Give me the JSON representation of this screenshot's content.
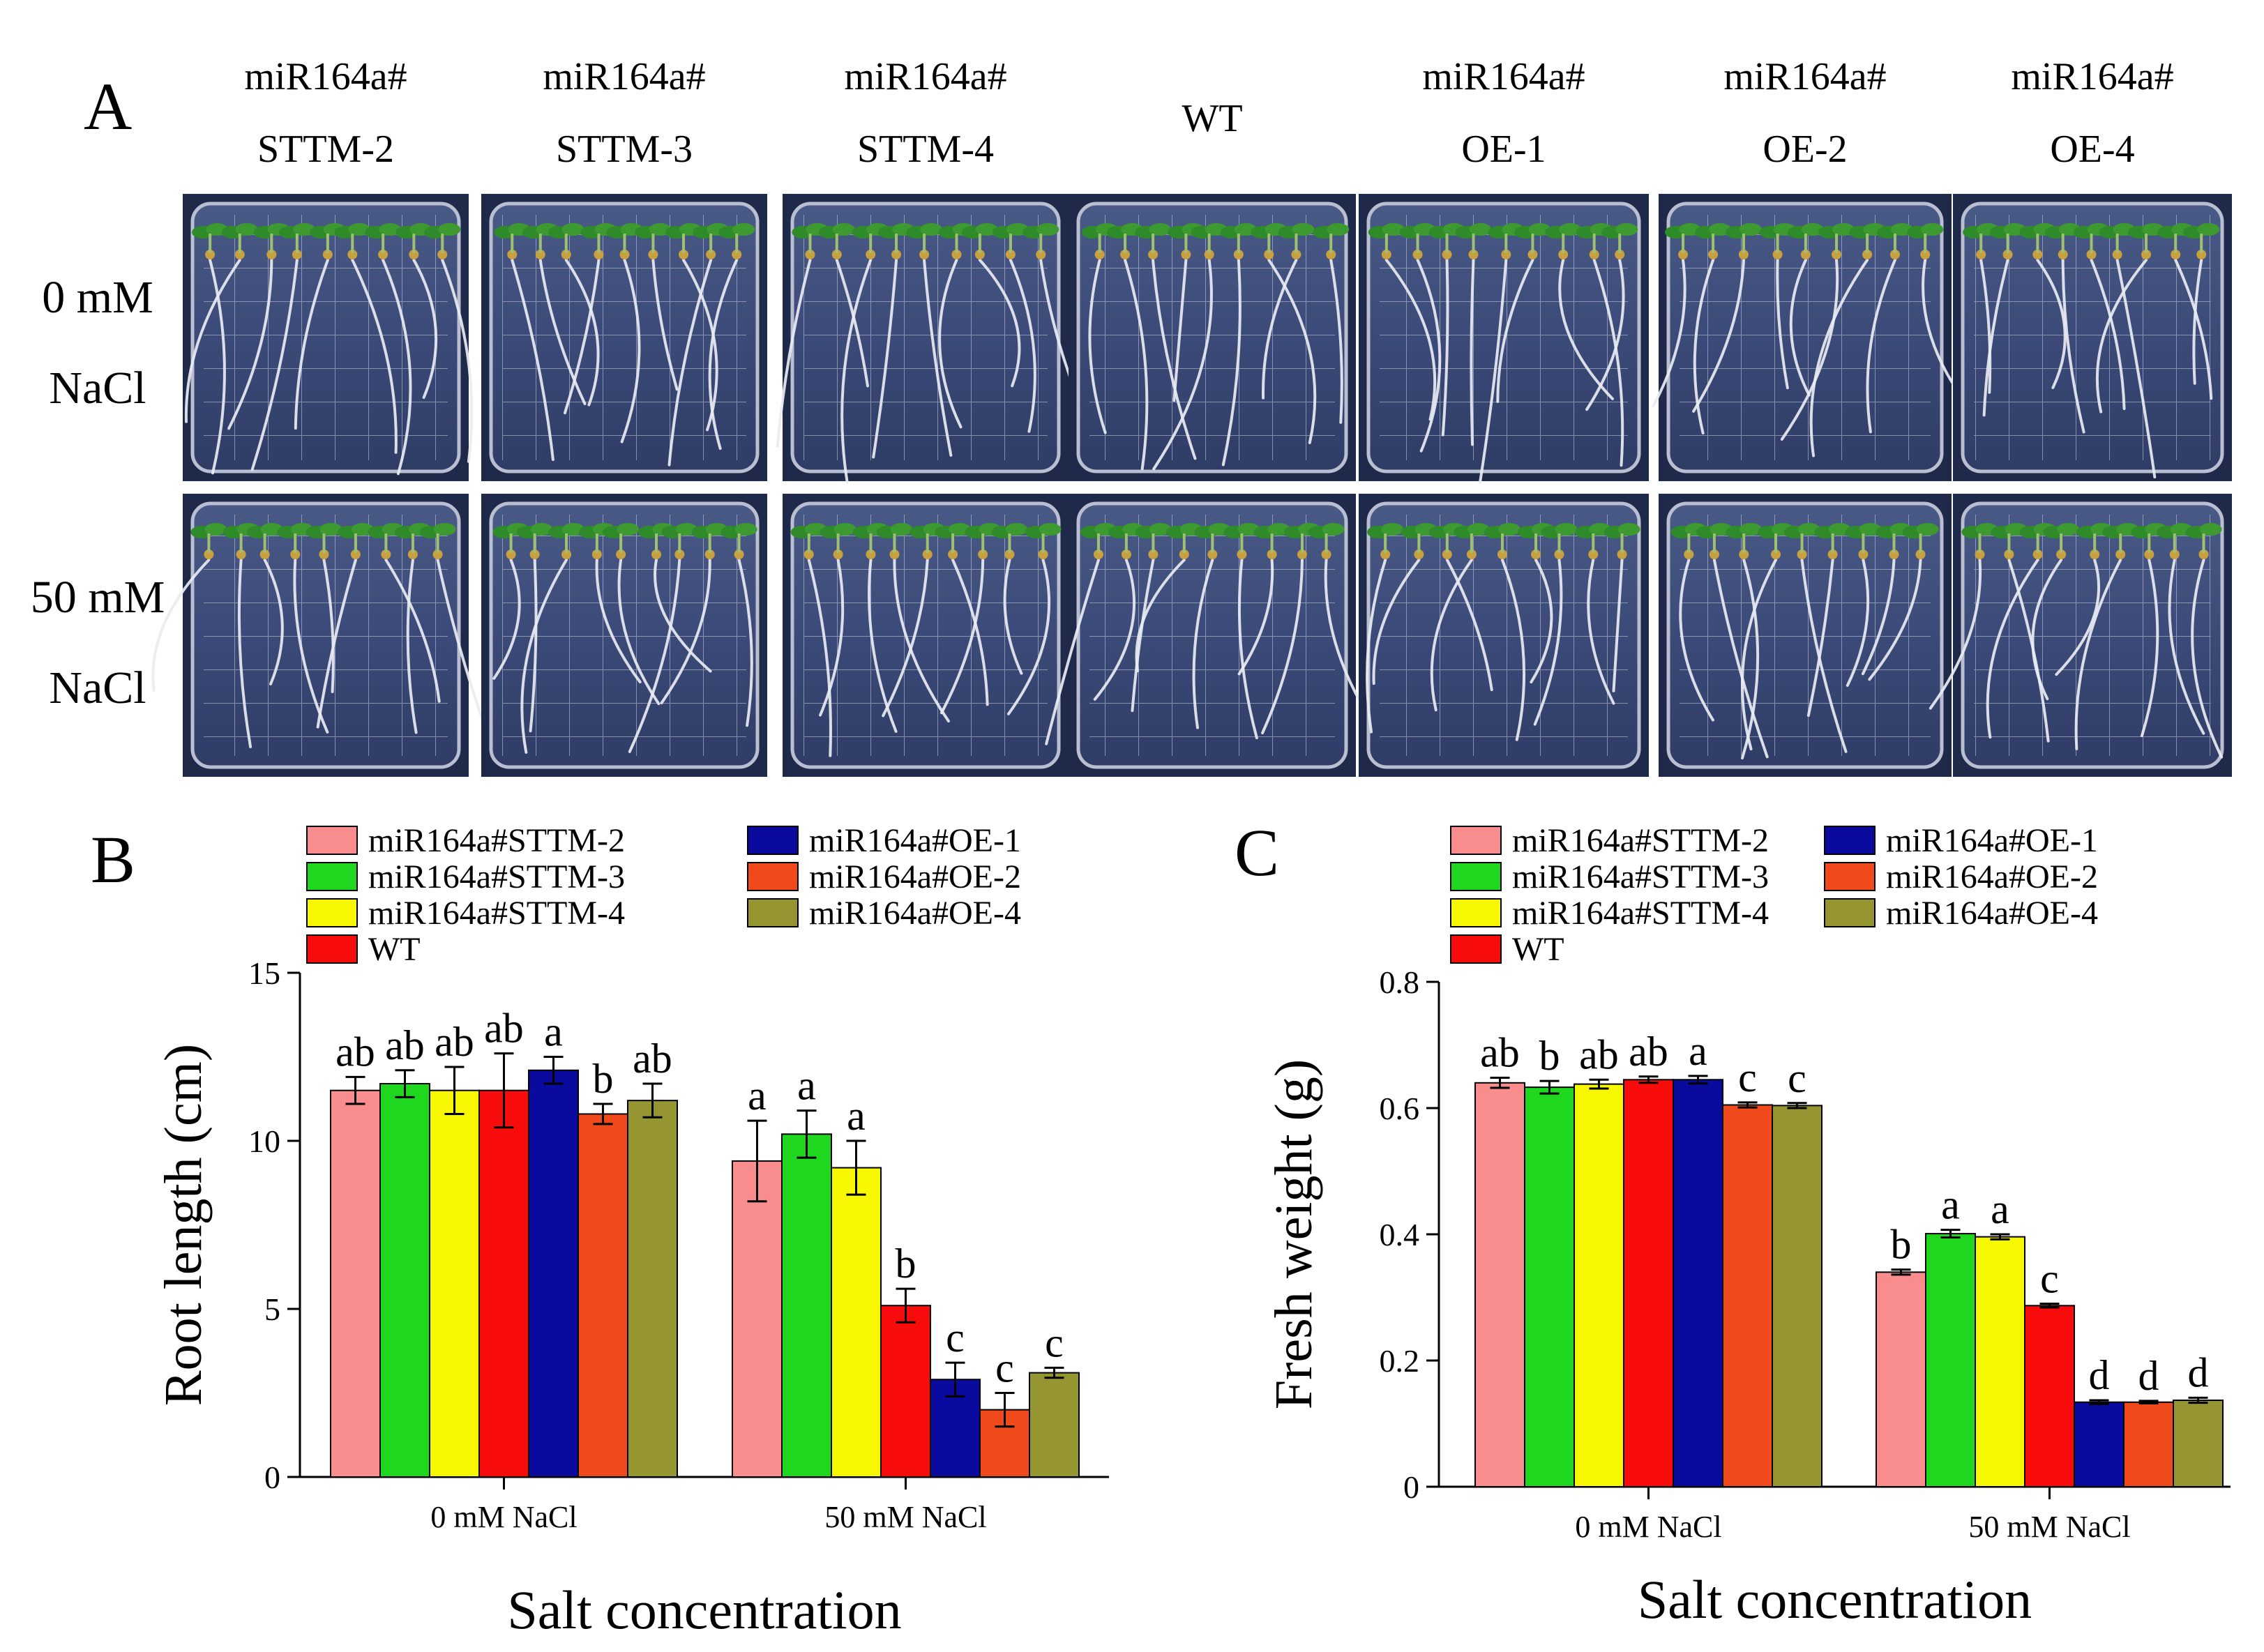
{
  "panel_a": {
    "letter": "A",
    "columns": [
      {
        "line1": "miR164a#",
        "line2": "STTM-2"
      },
      {
        "line1": "miR164a#",
        "line2": "STTM-3"
      },
      {
        "line1": "miR164a#",
        "line2": "STTM-4"
      },
      {
        "line1": "",
        "line2": "WT"
      },
      {
        "line1": "miR164a#",
        "line2": "OE-1"
      },
      {
        "line1": "miR164a#",
        "line2": "OE-2"
      },
      {
        "line1": "miR164a#",
        "line2": "OE-4"
      }
    ],
    "rows": [
      {
        "line1": "0 mM",
        "line2": "NaCl"
      },
      {
        "line1": "50 mM",
        "line2": "NaCl"
      }
    ]
  },
  "colors": {
    "miR164a#STTM-2": "#f98d8d",
    "miR164a#STTM-3": "#1fd71f",
    "miR164a#STTM-4": "#f7f700",
    "WT": "#f80b0b",
    "miR164a#OE-1": "#0a0a9e",
    "miR164a#OE-2": "#f04a1c",
    "miR164a#OE-4": "#959632"
  },
  "chart_data": [
    {
      "panel": "B",
      "type": "bar",
      "xlabel": "Salt concentration",
      "ylabel": "Root length (cm)",
      "ylim": [
        0,
        15
      ],
      "yticks": [
        "0",
        "5",
        "10",
        "15"
      ],
      "categories": [
        "0 mM NaCl",
        "50 mM NaCl"
      ],
      "series": [
        {
          "name": "miR164a#STTM-2",
          "values": [
            11.5,
            9.4
          ],
          "errors": [
            0.4,
            1.2
          ],
          "letters": [
            "ab",
            "a"
          ]
        },
        {
          "name": "miR164a#STTM-3",
          "values": [
            11.7,
            10.2
          ],
          "errors": [
            0.4,
            0.7
          ],
          "letters": [
            "ab",
            "a"
          ]
        },
        {
          "name": "miR164a#STTM-4",
          "values": [
            11.5,
            9.2
          ],
          "errors": [
            0.7,
            0.8
          ],
          "letters": [
            "ab",
            "a"
          ]
        },
        {
          "name": "WT",
          "values": [
            11.5,
            5.1
          ],
          "errors": [
            1.1,
            0.5
          ],
          "letters": [
            "ab",
            "b"
          ]
        },
        {
          "name": "miR164a#OE-1",
          "values": [
            12.1,
            2.9
          ],
          "errors": [
            0.4,
            0.5
          ],
          "letters": [
            "a",
            "c"
          ]
        },
        {
          "name": "miR164a#OE-2",
          "values": [
            10.8,
            2.0
          ],
          "errors": [
            0.3,
            0.5
          ],
          "letters": [
            "b",
            "c"
          ]
        },
        {
          "name": "miR164a#OE-4",
          "values": [
            11.2,
            3.1
          ],
          "errors": [
            0.5,
            0.15
          ],
          "letters": [
            "ab",
            "c"
          ]
        }
      ],
      "legend_position": "top-left"
    },
    {
      "panel": "C",
      "type": "bar",
      "xlabel": "Salt concentration",
      "ylabel": "Fresh weight (g)",
      "ylim": [
        0,
        0.8
      ],
      "yticks": [
        "0",
        "0.2",
        "0.4",
        "0.6",
        "0.8"
      ],
      "categories": [
        "0 mM NaCl",
        "50 mM NaCl"
      ],
      "series": [
        {
          "name": "miR164a#STTM-2",
          "values": [
            0.64,
            0.34
          ],
          "errors": [
            0.008,
            0.004
          ],
          "letters": [
            "ab",
            "b"
          ]
        },
        {
          "name": "miR164a#STTM-3",
          "values": [
            0.633,
            0.401
          ],
          "errors": [
            0.01,
            0.006
          ],
          "letters": [
            "b",
            "a"
          ]
        },
        {
          "name": "miR164a#STTM-4",
          "values": [
            0.638,
            0.396
          ],
          "errors": [
            0.007,
            0.004
          ],
          "letters": [
            "ab",
            "a"
          ]
        },
        {
          "name": "WT",
          "values": [
            0.645,
            0.287
          ],
          "errors": [
            0.005,
            0.003
          ],
          "letters": [
            "ab",
            "c"
          ]
        },
        {
          "name": "miR164a#OE-1",
          "values": [
            0.645,
            0.134
          ],
          "errors": [
            0.006,
            0.003
          ],
          "letters": [
            "a",
            "d"
          ]
        },
        {
          "name": "miR164a#OE-2",
          "values": [
            0.605,
            0.134
          ],
          "errors": [
            0.004,
            0.002
          ],
          "letters": [
            "c",
            "d"
          ]
        },
        {
          "name": "miR164a#OE-4",
          "values": [
            0.604,
            0.137
          ],
          "errors": [
            0.004,
            0.004
          ],
          "letters": [
            "c",
            "d"
          ]
        }
      ],
      "legend_position": "top-left"
    }
  ]
}
